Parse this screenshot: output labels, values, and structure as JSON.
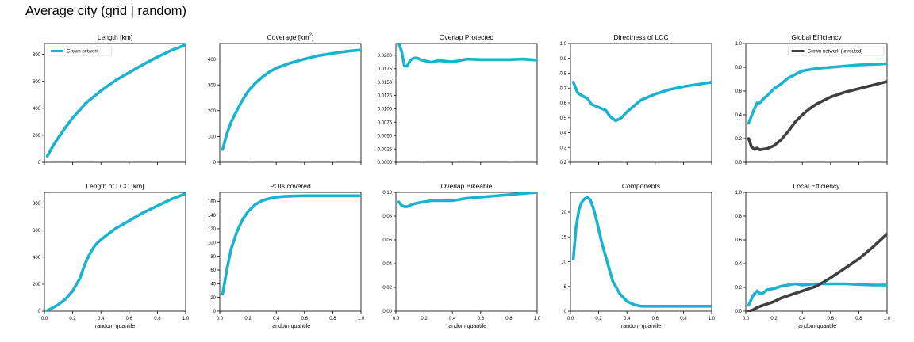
{
  "figure": {
    "title": "Average city (grid | random)"
  },
  "colors": {
    "grown": "#1ab3cf",
    "unrouted": "#404040"
  },
  "chart_data": [
    {
      "type": "line",
      "title": "Length [km]",
      "xlabel": "",
      "ylabel": "",
      "xlim": [
        0,
        1
      ],
      "ylim": [
        0,
        880
      ],
      "yticks": [
        0,
        200,
        400,
        600,
        800
      ],
      "ytick_labels": [
        "0",
        "200",
        "400",
        "600",
        "800"
      ],
      "xticks": [
        0,
        0.2,
        0.4,
        0.6,
        0.8,
        1.0
      ],
      "xtick_labels": [],
      "legend": {
        "position": "top-left",
        "entries": [
          "Grown network"
        ]
      },
      "series": [
        {
          "name": "Grown network",
          "color": "#1ab3cf",
          "x": [
            0.02,
            0.06,
            0.1,
            0.15,
            0.2,
            0.3,
            0.4,
            0.5,
            0.6,
            0.7,
            0.8,
            0.9,
            1.0
          ],
          "y": [
            45,
            120,
            185,
            260,
            330,
            445,
            530,
            605,
            665,
            725,
            780,
            830,
            870
          ]
        }
      ]
    },
    {
      "type": "line",
      "title": "Coverage [km²]",
      "xlabel": "",
      "ylabel": "",
      "xlim": [
        0,
        1
      ],
      "ylim": [
        0,
        460
      ],
      "yticks": [
        0,
        100,
        200,
        300,
        400
      ],
      "ytick_labels": [
        "0",
        "100",
        "200",
        "300",
        "400"
      ],
      "xticks": [
        0,
        0.2,
        0.4,
        0.6,
        0.8,
        1.0
      ],
      "xtick_labels": [],
      "series": [
        {
          "name": "Grown network",
          "color": "#1ab3cf",
          "x": [
            0.02,
            0.05,
            0.08,
            0.12,
            0.16,
            0.2,
            0.25,
            0.3,
            0.35,
            0.4,
            0.5,
            0.6,
            0.7,
            0.8,
            0.9,
            1.0
          ],
          "y": [
            50,
            110,
            155,
            200,
            240,
            275,
            305,
            330,
            350,
            365,
            385,
            400,
            413,
            422,
            430,
            435
          ]
        }
      ]
    },
    {
      "type": "line",
      "title": "Overlap Protected",
      "xlabel": "",
      "ylabel": "",
      "xlim": [
        0,
        1
      ],
      "ylim": [
        0,
        0.0222
      ],
      "yticks": [
        0,
        0.0025,
        0.005,
        0.0075,
        0.01,
        0.0125,
        0.015,
        0.0175,
        0.02
      ],
      "ytick_labels": [
        "0.0000",
        "0.0025",
        "0.0050",
        "0.0075",
        "0.0100",
        "0.0125",
        "0.0150",
        "0.0175",
        "0.0200"
      ],
      "xticks": [
        0,
        0.2,
        0.4,
        0.6,
        0.8,
        1.0
      ],
      "xtick_labels": [],
      "series": [
        {
          "name": "Grown network",
          "color": "#1ab3cf",
          "x": [
            0.02,
            0.04,
            0.06,
            0.08,
            0.1,
            0.12,
            0.14,
            0.16,
            0.18,
            0.2,
            0.25,
            0.3,
            0.35,
            0.4,
            0.45,
            0.5,
            0.6,
            0.7,
            0.8,
            0.9,
            0.95,
            1.0
          ],
          "y": [
            0.0222,
            0.0208,
            0.018,
            0.018,
            0.019,
            0.0194,
            0.0195,
            0.0194,
            0.0191,
            0.019,
            0.0187,
            0.019,
            0.0189,
            0.0188,
            0.019,
            0.0193,
            0.0192,
            0.0192,
            0.0192,
            0.0193,
            0.0192,
            0.0191
          ]
        }
      ]
    },
    {
      "type": "line",
      "title": "Directness of LCC",
      "xlabel": "",
      "ylabel": "",
      "xlim": [
        0,
        1
      ],
      "ylim": [
        0.2,
        1.0
      ],
      "yticks": [
        0.2,
        0.3,
        0.4,
        0.5,
        0.6,
        0.7,
        0.8,
        0.9,
        1.0
      ],
      "ytick_labels": [
        "0.2",
        "0.3",
        "0.4",
        "0.5",
        "0.6",
        "0.7",
        "0.8",
        "0.9",
        "1.0"
      ],
      "xticks": [
        0,
        0.2,
        0.4,
        0.6,
        0.8,
        1.0
      ],
      "xtick_labels": [],
      "series": [
        {
          "name": "Grown network",
          "color": "#1ab3cf",
          "x": [
            0.02,
            0.05,
            0.08,
            0.12,
            0.15,
            0.2,
            0.25,
            0.28,
            0.32,
            0.36,
            0.4,
            0.45,
            0.5,
            0.55,
            0.6,
            0.7,
            0.8,
            0.9,
            1.0
          ],
          "y": [
            0.74,
            0.67,
            0.65,
            0.63,
            0.59,
            0.57,
            0.55,
            0.51,
            0.48,
            0.5,
            0.54,
            0.58,
            0.62,
            0.64,
            0.66,
            0.69,
            0.71,
            0.725,
            0.74
          ]
        }
      ]
    },
    {
      "type": "line",
      "title": "Global Efficiency",
      "xlabel": "",
      "ylabel": "",
      "xlim": [
        0,
        1
      ],
      "ylim": [
        0,
        1.0
      ],
      "yticks": [
        0,
        0.2,
        0.4,
        0.6,
        0.8,
        1.0
      ],
      "ytick_labels": [
        "0.0",
        "0.2",
        "0.4",
        "0.6",
        "0.8",
        "1.0"
      ],
      "xticks": [
        0,
        0.2,
        0.4,
        0.6,
        0.8,
        1.0
      ],
      "xtick_labels": [],
      "legend": {
        "position": "top-right",
        "entries": [
          "Grown network (unrouted)"
        ]
      },
      "series": [
        {
          "name": "",
          "color": "#1ab3cf",
          "x": [
            0.02,
            0.05,
            0.08,
            0.1,
            0.12,
            0.15,
            0.2,
            0.25,
            0.3,
            0.35,
            0.4,
            0.5,
            0.6,
            0.7,
            0.8,
            0.9,
            1.0
          ],
          "y": [
            0.33,
            0.42,
            0.5,
            0.5,
            0.53,
            0.56,
            0.62,
            0.66,
            0.71,
            0.74,
            0.77,
            0.79,
            0.8,
            0.81,
            0.82,
            0.825,
            0.83
          ]
        },
        {
          "name": "Grown network (unrouted)",
          "color": "#404040",
          "x": [
            0.02,
            0.04,
            0.06,
            0.08,
            0.1,
            0.12,
            0.15,
            0.2,
            0.25,
            0.3,
            0.35,
            0.4,
            0.45,
            0.5,
            0.6,
            0.7,
            0.8,
            0.9,
            1.0
          ],
          "y": [
            0.2,
            0.13,
            0.11,
            0.12,
            0.105,
            0.11,
            0.115,
            0.14,
            0.19,
            0.26,
            0.34,
            0.4,
            0.45,
            0.49,
            0.55,
            0.59,
            0.62,
            0.65,
            0.68
          ]
        }
      ]
    },
    {
      "type": "line",
      "title": "Length of LCC [km]",
      "xlabel": "random quantile",
      "ylabel": "",
      "xlim": [
        0,
        1
      ],
      "ylim": [
        0,
        880
      ],
      "yticks": [
        0,
        200,
        400,
        600,
        800
      ],
      "ytick_labels": [
        "0",
        "200",
        "400",
        "600",
        "800"
      ],
      "xticks": [
        0,
        0.2,
        0.4,
        0.6,
        0.8,
        1.0
      ],
      "xtick_labels": [
        "0.0",
        "0.2",
        "0.4",
        "0.6",
        "0.8",
        "1.0"
      ],
      "series": [
        {
          "name": "Grown network",
          "color": "#1ab3cf",
          "x": [
            0.02,
            0.05,
            0.1,
            0.15,
            0.2,
            0.25,
            0.28,
            0.3,
            0.33,
            0.36,
            0.4,
            0.45,
            0.5,
            0.6,
            0.7,
            0.8,
            0.9,
            1.0
          ],
          "y": [
            5,
            20,
            50,
            90,
            150,
            240,
            330,
            380,
            440,
            490,
            530,
            570,
            610,
            670,
            730,
            780,
            830,
            870
          ]
        }
      ]
    },
    {
      "type": "line",
      "title": "POIs covered",
      "xlabel": "random quantile",
      "ylabel": "",
      "xlim": [
        0,
        1
      ],
      "ylim": [
        0,
        173
      ],
      "yticks": [
        0,
        20,
        40,
        60,
        80,
        100,
        120,
        140,
        160
      ],
      "ytick_labels": [
        "0",
        "20",
        "40",
        "60",
        "80",
        "100",
        "120",
        "140",
        "160"
      ],
      "xticks": [
        0,
        0.2,
        0.4,
        0.6,
        0.8,
        1.0
      ],
      "xtick_labels": [
        "0.0",
        "0.2",
        "0.4",
        "0.6",
        "0.8",
        "1.0"
      ],
      "series": [
        {
          "name": "Grown network",
          "color": "#1ab3cf",
          "x": [
            0.02,
            0.05,
            0.08,
            0.12,
            0.16,
            0.2,
            0.25,
            0.3,
            0.35,
            0.4,
            0.45,
            0.5,
            0.6,
            0.7,
            0.8,
            0.9,
            1.0
          ],
          "y": [
            25,
            60,
            90,
            115,
            133,
            145,
            155,
            161,
            164,
            166,
            167,
            167.5,
            168,
            168,
            168,
            168,
            168
          ]
        }
      ]
    },
    {
      "type": "line",
      "title": "Overlap Bikeable",
      "xlabel": "random quantile",
      "ylabel": "",
      "xlim": [
        0,
        1
      ],
      "ylim": [
        0,
        0.1
      ],
      "yticks": [
        0,
        0.02,
        0.04,
        0.06,
        0.08,
        0.1
      ],
      "ytick_labels": [
        "0.00",
        "0.02",
        "0.04",
        "0.06",
        "0.08",
        "0.10"
      ],
      "xticks": [
        0,
        0.2,
        0.4,
        0.6,
        0.8,
        1.0
      ],
      "xtick_labels": [
        "0.0",
        "0.2",
        "0.4",
        "0.6",
        "0.8",
        "1.0"
      ],
      "series": [
        {
          "name": "Grown network",
          "color": "#1ab3cf",
          "x": [
            0.02,
            0.04,
            0.06,
            0.08,
            0.1,
            0.12,
            0.15,
            0.2,
            0.25,
            0.3,
            0.35,
            0.4,
            0.45,
            0.5,
            0.6,
            0.7,
            0.8,
            0.9,
            1.0
          ],
          "y": [
            0.092,
            0.089,
            0.088,
            0.088,
            0.089,
            0.09,
            0.091,
            0.092,
            0.093,
            0.093,
            0.093,
            0.093,
            0.094,
            0.095,
            0.096,
            0.097,
            0.098,
            0.099,
            0.1
          ]
        }
      ]
    },
    {
      "type": "line",
      "title": "Components",
      "xlabel": "random quantile",
      "ylabel": "",
      "xlim": [
        0,
        1
      ],
      "ylim": [
        0,
        24
      ],
      "yticks": [
        0,
        5,
        10,
        15,
        20
      ],
      "ytick_labels": [
        "0",
        "5",
        "10",
        "15",
        "20"
      ],
      "xticks": [
        0,
        0.2,
        0.4,
        0.6,
        0.8,
        1.0
      ],
      "xtick_labels": [
        "0.0",
        "0.2",
        "0.4",
        "0.6",
        "0.8",
        "1.0"
      ],
      "series": [
        {
          "name": "Grown network",
          "color": "#1ab3cf",
          "x": [
            0.02,
            0.04,
            0.06,
            0.08,
            0.1,
            0.12,
            0.14,
            0.16,
            0.18,
            0.2,
            0.22,
            0.25,
            0.28,
            0.3,
            0.35,
            0.4,
            0.45,
            0.5,
            0.55,
            0.6,
            0.7,
            0.8,
            0.9,
            1.0
          ],
          "y": [
            10.5,
            17,
            20.5,
            22,
            22.7,
            23,
            22.5,
            21,
            19,
            16.5,
            14,
            11,
            8,
            6,
            3.5,
            2,
            1.3,
            1.0,
            1.0,
            1.0,
            1.0,
            1.0,
            1.0,
            1.0
          ]
        }
      ]
    },
    {
      "type": "line",
      "title": "Local Efficiency",
      "xlabel": "random quantile",
      "ylabel": "",
      "xlim": [
        0,
        1
      ],
      "ylim": [
        0,
        1.0
      ],
      "yticks": [
        0,
        0.2,
        0.4,
        0.6,
        0.8,
        1.0
      ],
      "ytick_labels": [
        "0.0",
        "0.2",
        "0.4",
        "0.6",
        "0.8",
        "1.0"
      ],
      "xticks": [
        0,
        0.2,
        0.4,
        0.6,
        0.8,
        1.0
      ],
      "xtick_labels": [
        "0.0",
        "0.2",
        "0.4",
        "0.6",
        "0.8",
        "1.0"
      ],
      "series": [
        {
          "name": "",
          "color": "#1ab3cf",
          "x": [
            0.02,
            0.05,
            0.08,
            0.1,
            0.12,
            0.15,
            0.2,
            0.25,
            0.3,
            0.35,
            0.4,
            0.5,
            0.6,
            0.7,
            0.8,
            0.9,
            1.0
          ],
          "y": [
            0.05,
            0.13,
            0.17,
            0.15,
            0.15,
            0.18,
            0.19,
            0.21,
            0.22,
            0.23,
            0.22,
            0.23,
            0.23,
            0.23,
            0.225,
            0.22,
            0.22
          ]
        },
        {
          "name": "",
          "color": "#404040",
          "x": [
            0.02,
            0.05,
            0.08,
            0.1,
            0.15,
            0.2,
            0.25,
            0.3,
            0.35,
            0.4,
            0.45,
            0.5,
            0.6,
            0.7,
            0.8,
            0.9,
            1.0
          ],
          "y": [
            0.0,
            0.01,
            0.03,
            0.04,
            0.06,
            0.08,
            0.11,
            0.13,
            0.15,
            0.17,
            0.19,
            0.21,
            0.28,
            0.36,
            0.44,
            0.54,
            0.65
          ]
        }
      ]
    }
  ]
}
